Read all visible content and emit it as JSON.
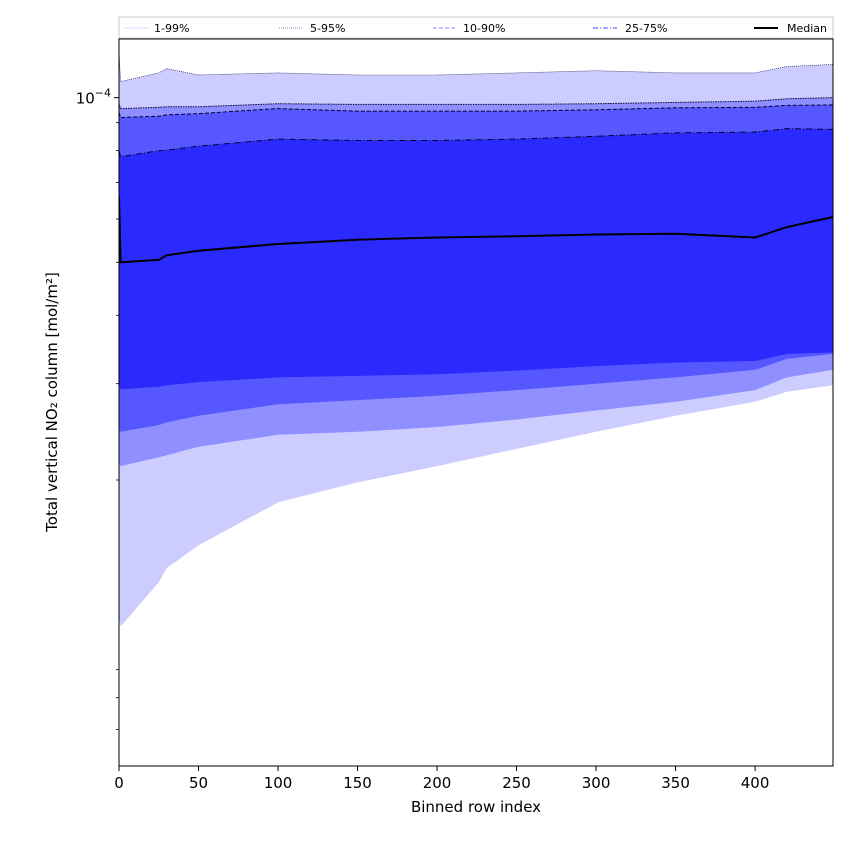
{
  "chart_data": {
    "type": "area",
    "title": "",
    "xlabel": "Binned row index",
    "ylabel": "Total vertical NO₂ column [mol/m²]",
    "xlim": [
      0,
      449
    ],
    "ylim": [
      6e-06,
      0.000128
    ],
    "yscale": "log",
    "x_ticks": [
      0,
      50,
      100,
      150,
      200,
      250,
      300,
      350,
      400
    ],
    "x_tick_labels": [
      "0",
      "50",
      "100",
      "150",
      "200",
      "250",
      "300",
      "350",
      "400"
    ],
    "y_tick_major_value": 0.0001,
    "y_tick_major_label_base": "10",
    "y_tick_major_label_exp": "−4",
    "legend_position": "top",
    "legend": [
      {
        "label": "1-99%",
        "color": "#d9d9ff",
        "style": "solid"
      },
      {
        "label": "5-95%",
        "color": "#8a8ab8",
        "style": "dotted"
      },
      {
        "label": "10-90%",
        "color": "#8a8aff",
        "style": "dashed"
      },
      {
        "label": "25-75%",
        "color": "#4040ff",
        "style": "dashdot"
      },
      {
        "label": "Median",
        "color": "#000000",
        "style": "solid"
      }
    ],
    "x": [
      0,
      1,
      25,
      30,
      50,
      100,
      150,
      200,
      250,
      300,
      350,
      400,
      420,
      449
    ],
    "bands": [
      {
        "name": "1-99%",
        "color": "#ccccff",
        "low": [
          1.12e-05,
          1.08e-05,
          1.3e-05,
          1.38e-05,
          1.52e-05,
          1.82e-05,
          1.98e-05,
          2.12e-05,
          2.28e-05,
          2.45e-05,
          2.62e-05,
          2.78e-05,
          2.9e-05,
          2.98e-05
        ],
        "high": [
          0.000122,
          0.000107,
          0.000111,
          0.000113,
          0.00011,
          0.000111,
          0.00011,
          0.00011,
          0.000111,
          0.000112,
          0.000111,
          0.000111,
          0.000114,
          0.000115
        ]
      },
      {
        "name": "5-95%",
        "color": "#8f8fff",
        "low": [
          2.15e-05,
          2.12e-05,
          2.2e-05,
          2.22e-05,
          2.3e-05,
          2.42e-05,
          2.45e-05,
          2.5e-05,
          2.58e-05,
          2.68e-05,
          2.78e-05,
          2.92e-05,
          3.08e-05,
          3.18e-05
        ],
        "high": [
          9.75e-05,
          9.55e-05,
          9.6e-05,
          9.62e-05,
          9.62e-05,
          9.75e-05,
          9.72e-05,
          9.72e-05,
          9.72e-05,
          9.75e-05,
          9.8e-05,
          9.85e-05,
          9.95e-05,
          0.0001
        ]
      },
      {
        "name": "10-90%",
        "color": "#5757ff",
        "low": [
          2.48e-05,
          2.45e-05,
          2.52e-05,
          2.55e-05,
          2.62e-05,
          2.75e-05,
          2.8e-05,
          2.85e-05,
          2.92e-05,
          3e-05,
          3.08e-05,
          3.18e-05,
          3.33e-05,
          3.4e-05
        ],
        "high": [
          9.4e-05,
          9.2e-05,
          9.25e-05,
          9.3e-05,
          9.35e-05,
          9.55e-05,
          9.45e-05,
          9.45e-05,
          9.45e-05,
          9.5e-05,
          9.58e-05,
          9.6e-05,
          9.68e-05,
          9.7e-05
        ]
      },
      {
        "name": "25-75%",
        "color": "#2a2aff",
        "low": [
          3e-05,
          2.93e-05,
          2.96e-05,
          2.98e-05,
          3.02e-05,
          3.08e-05,
          3.1e-05,
          3.12e-05,
          3.17e-05,
          3.23e-05,
          3.28e-05,
          3.3e-05,
          3.4e-05,
          3.42e-05
        ],
        "high": [
          8e-05,
          7.8e-05,
          8e-05,
          8.02e-05,
          8.15e-05,
          8.4e-05,
          8.35e-05,
          8.35e-05,
          8.4e-05,
          8.5e-05,
          8.62e-05,
          8.65e-05,
          8.78e-05,
          8.75e-05
        ]
      }
    ],
    "median": [
      6.6e-05,
      5e-05,
      5.05e-05,
      5.15e-05,
      5.25e-05,
      5.4e-05,
      5.5e-05,
      5.55e-05,
      5.58e-05,
      5.62e-05,
      5.64e-05,
      5.55e-05,
      5.8e-05,
      6.05e-05
    ]
  }
}
